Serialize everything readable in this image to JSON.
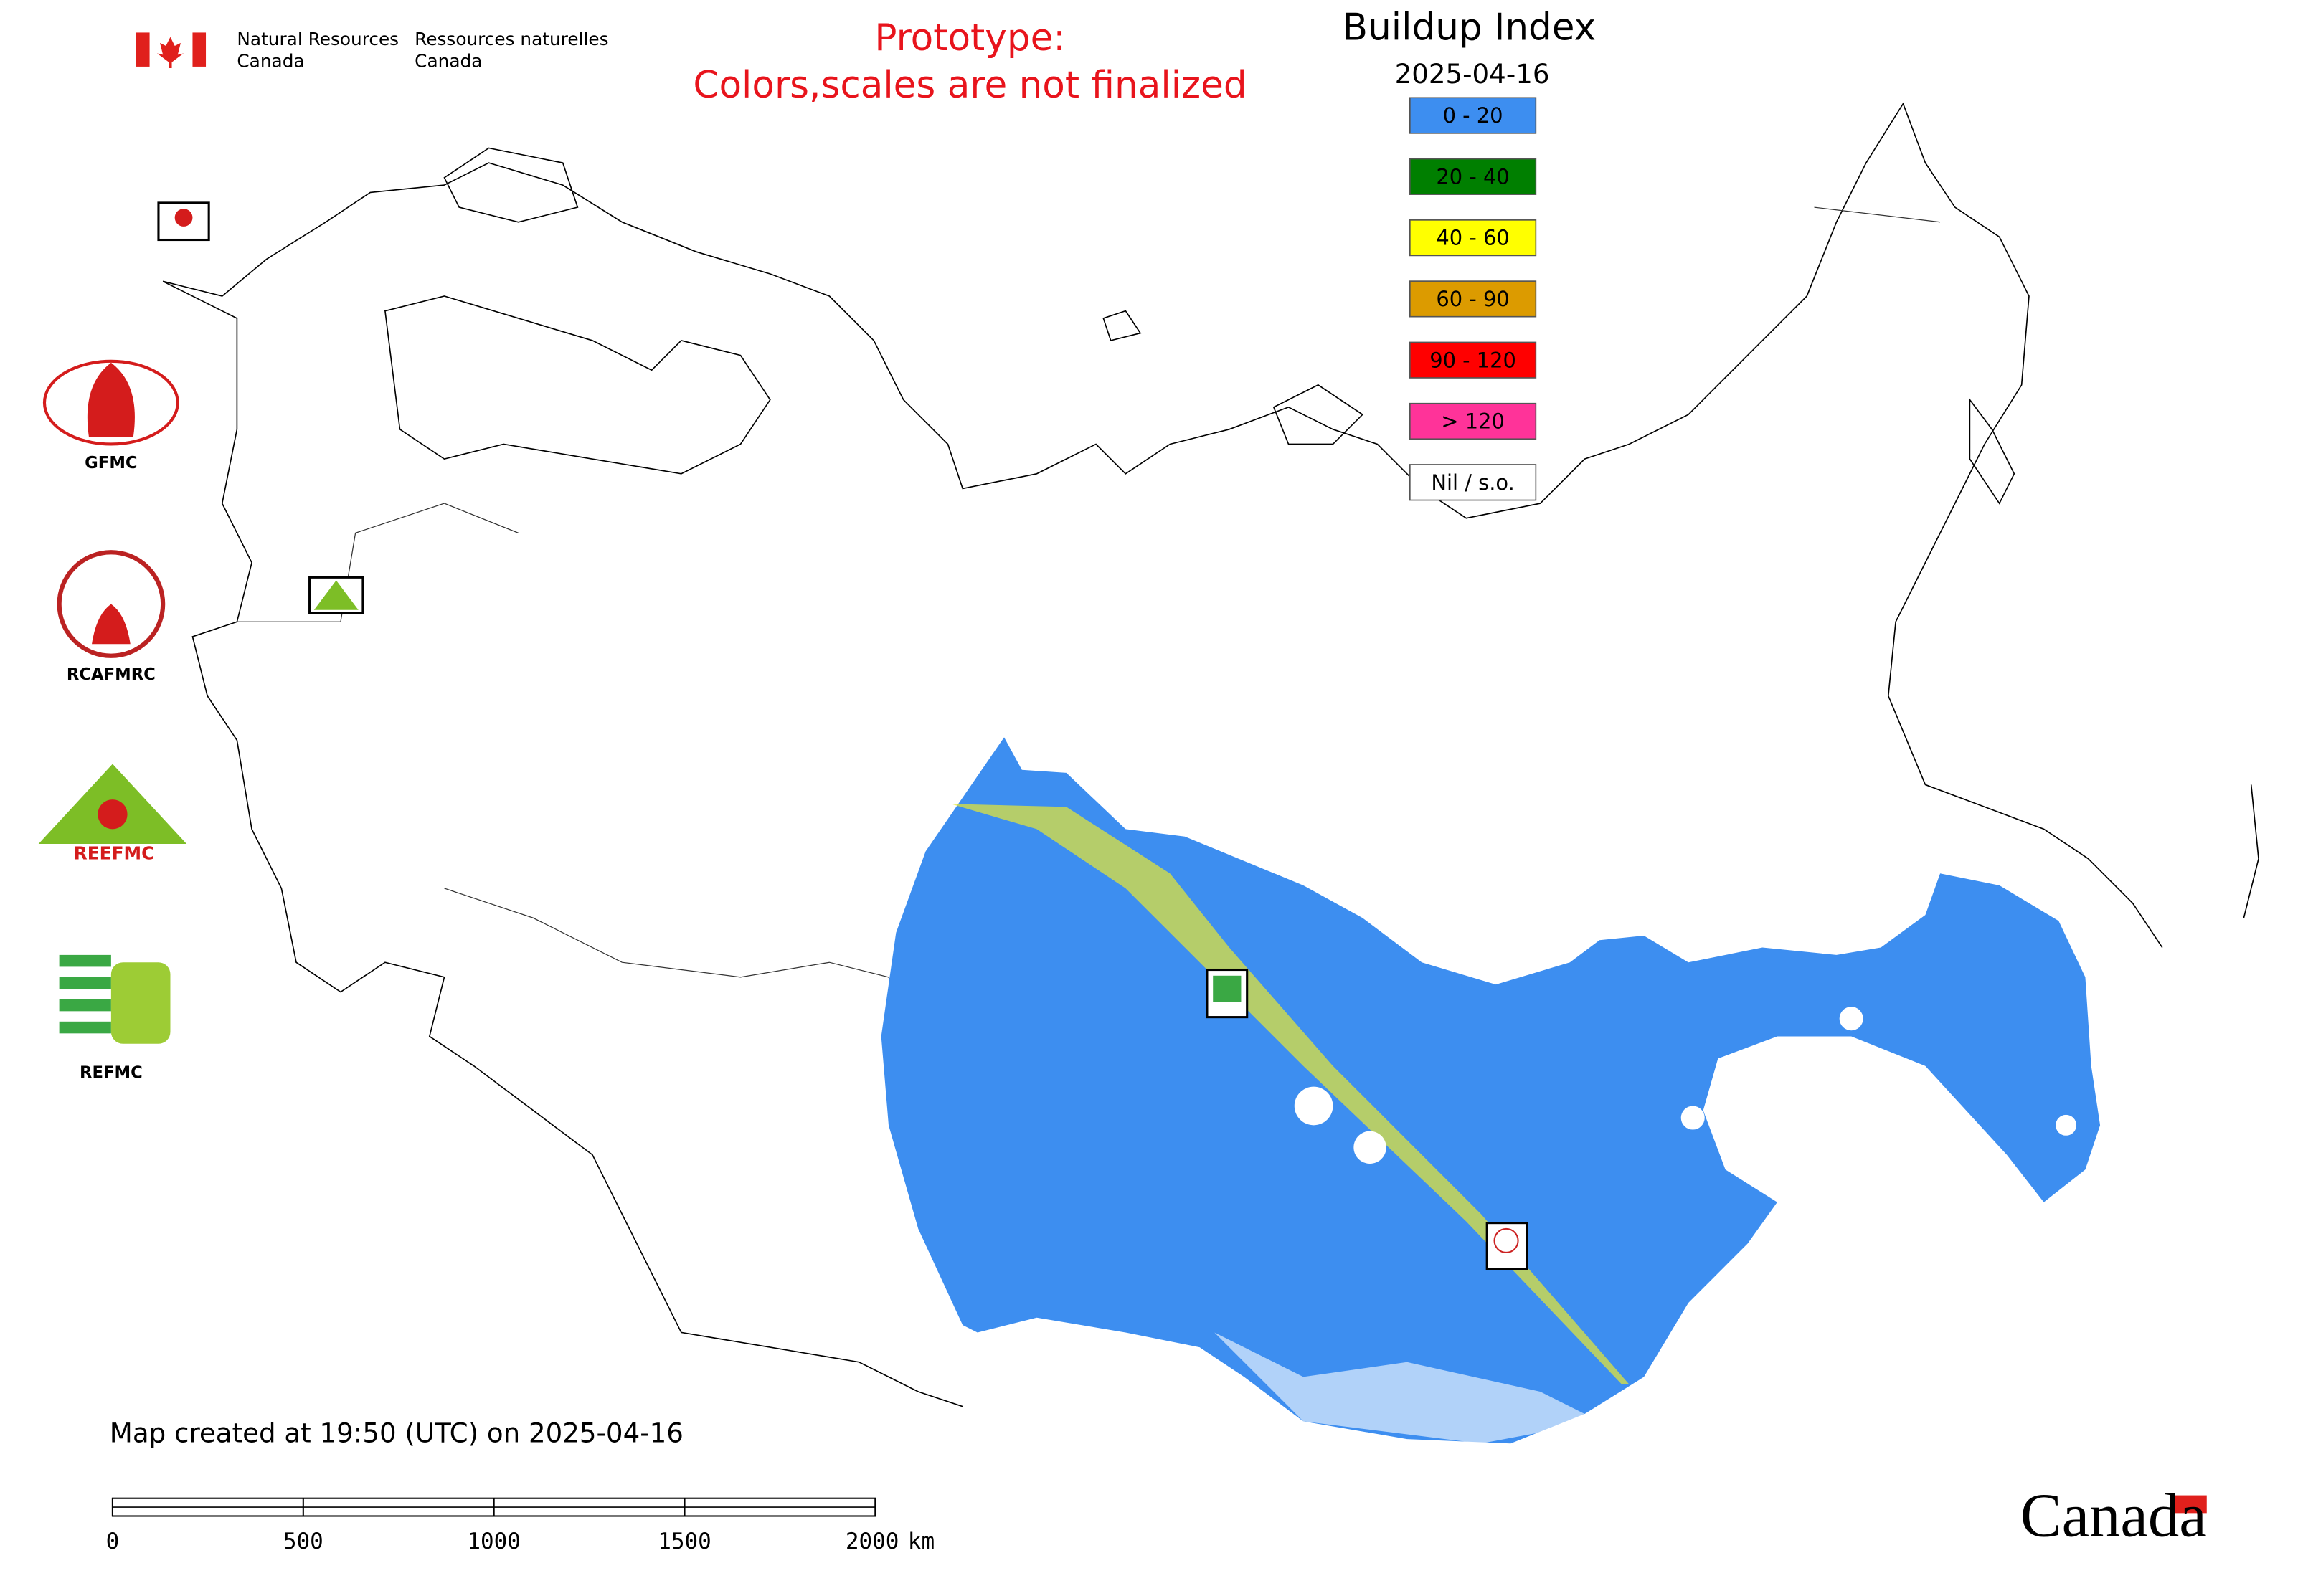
{
  "header": {
    "agency_en_1": "Natural Resources",
    "agency_en_2": "Canada",
    "agency_fr_1": "Ressources naturelles",
    "agency_fr_2": "Canada"
  },
  "notice": {
    "line_1": "Prototype:",
    "line_2": "Colors,scales are not finalized"
  },
  "legend": {
    "title": "Buildup Index",
    "date": "2025-04-16",
    "items": [
      {
        "label": "0 - 20",
        "color": "#3d8ef0"
      },
      {
        "label": "20 - 40",
        "color": "#007f00"
      },
      {
        "label": "40 - 60",
        "color": "#ffff00"
      },
      {
        "label": "60 - 90",
        "color": "#dc9b00"
      },
      {
        "label": "90 - 120",
        "color": "#ff0000"
      },
      {
        "label": "> 120",
        "color": "#ff3399"
      },
      {
        "label": "Nil / s.o.",
        "color": "#ffffff"
      }
    ]
  },
  "logos": [
    {
      "label": "GFMC"
    },
    {
      "label": "RCAFMRC"
    },
    {
      "label": "REEFMC"
    },
    {
      "label": "REFMC"
    }
  ],
  "footer": {
    "created": "Map created at 19:50 (UTC) on 2025-04-16",
    "scale_bar": {
      "ticks": [
        0,
        500,
        1000,
        1500,
        2000
      ],
      "unit": "km"
    },
    "wordmark": "Canada"
  }
}
